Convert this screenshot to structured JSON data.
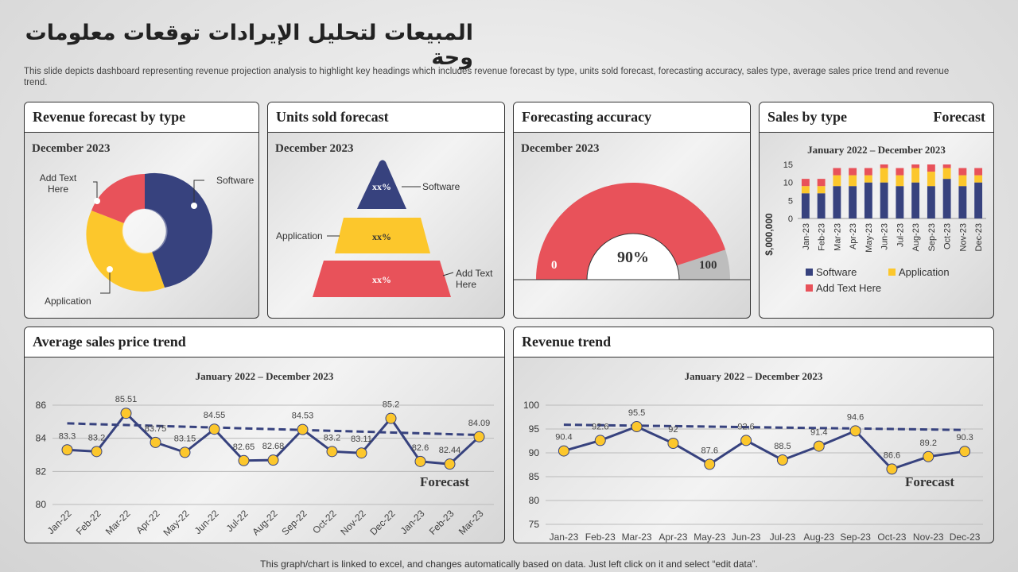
{
  "title": "المبيعات لتحليل الإيرادات توقعات معلومات وحة",
  "description": "This slide depicts dashboard representing revenue projection analysis to highlight key headings which includes revenue forecast by type, units sold forecast, forecasting accuracy, sales type, average sales price trend and revenue trend.",
  "footer": "This graph/chart is linked to excel, and changes automatically based on data. Just left click on it and select “edit data”.",
  "colors": {
    "navy": "#37427e",
    "yellow": "#fcc72c",
    "red": "#e8525a",
    "gray": "#bdbdbd"
  },
  "revenue_by_type": {
    "title": "Revenue forecast by type",
    "subtitle": "December 2023",
    "labels": {
      "software": "Software",
      "add": "Add Text Here",
      "application": "Application"
    }
  },
  "units_sold": {
    "title": "Units sold forecast",
    "subtitle": "December 2023",
    "levels": [
      {
        "value": "xx%",
        "label": "Software"
      },
      {
        "value": "xx%",
        "label": "Application"
      },
      {
        "value": "xx%",
        "label": "Add Text Here"
      }
    ]
  },
  "accuracy": {
    "title": "Forecasting accuracy",
    "subtitle": "December 2023",
    "value": "90%",
    "min": "0",
    "max": "100",
    "fraction": 0.9
  },
  "sales_by_type": {
    "title": "Sales by type",
    "tag": "Forecast"
  },
  "avg_price": {
    "title": "Average sales price trend",
    "tag": "Forecast"
  },
  "revenue_trend": {
    "title": "Revenue trend",
    "tag": "Forecast"
  },
  "chart_data": [
    {
      "type": "bar",
      "stacked": true,
      "title": "January 2022 – December 2023",
      "ylabel": "$,000,000",
      "ylim": [
        0,
        15
      ],
      "yticks": [
        "0",
        "5",
        "10",
        "15"
      ],
      "categories": [
        "Jan-23",
        "Feb-23",
        "Mar-23",
        "Apr-23",
        "May-23",
        "Jun-23",
        "Jul-23",
        "Aug-23",
        "Sep-23",
        "Oct-23",
        "Nov-23",
        "Dec-23"
      ],
      "series": [
        {
          "name": "Software",
          "values": [
            7,
            7,
            9,
            9,
            10,
            10,
            9,
            10,
            9,
            11,
            9,
            10
          ]
        },
        {
          "name": "Application",
          "values": [
            2,
            2,
            3,
            3,
            2,
            4,
            3,
            4,
            4,
            3,
            3,
            2
          ]
        },
        {
          "name": "Add Text Here",
          "values": [
            2,
            2,
            2,
            2,
            2,
            1,
            2,
            1,
            2,
            1,
            2,
            2
          ]
        }
      ]
    },
    {
      "type": "line",
      "title": "January 2022 – December 2023",
      "ylim": [
        80,
        86
      ],
      "yticks": [
        "80",
        "82",
        "84",
        "86"
      ],
      "categories": [
        "Jan-22",
        "Feb-22",
        "Mar-22",
        "Apr-22",
        "May-22",
        "Jun-22",
        "Jul-22",
        "Aug-22",
        "Sep-22",
        "Oct-22",
        "Nov-22",
        "Dec-22",
        "Jan-23",
        "Feb-23",
        "Mar-23"
      ],
      "values": [
        83.3,
        83.2,
        85.51,
        83.75,
        83.15,
        84.55,
        82.65,
        82.68,
        84.53,
        83.2,
        83.11,
        85.2,
        82.6,
        82.44,
        84.09
      ],
      "labels": [
        "83.3",
        "83.2",
        "85.51",
        "83.75",
        "83.15",
        "84.55",
        "82.65",
        "82.68",
        "84.53",
        "83.2",
        "83.11",
        "85.2",
        "82.6",
        "82.44",
        "84.09"
      ],
      "trend": [
        84.9,
        84.2
      ]
    },
    {
      "type": "line",
      "title": "January 2022 – December 2023",
      "ylim": [
        75,
        100
      ],
      "yticks": [
        "75",
        "80",
        "85",
        "90",
        "95",
        "100"
      ],
      "categories": [
        "Jan-23",
        "Feb-23",
        "Mar-23",
        "Apr-23",
        "May-23",
        "Jun-23",
        "Jul-23",
        "Aug-23",
        "Sep-23",
        "Oct-23",
        "Nov-23",
        "Dec-23"
      ],
      "values": [
        90.4,
        92.6,
        95.5,
        92,
        87.6,
        92.6,
        88.5,
        91.4,
        94.6,
        86.6,
        89.2,
        90.3
      ],
      "labels": [
        "90.4",
        "92.6",
        "95.5",
        "92",
        "87.6",
        "92.6",
        "88.5",
        "91.4",
        "94.6",
        "86.6",
        "89.2",
        "90.3"
      ],
      "trend": [
        95.9,
        94.8
      ]
    }
  ]
}
